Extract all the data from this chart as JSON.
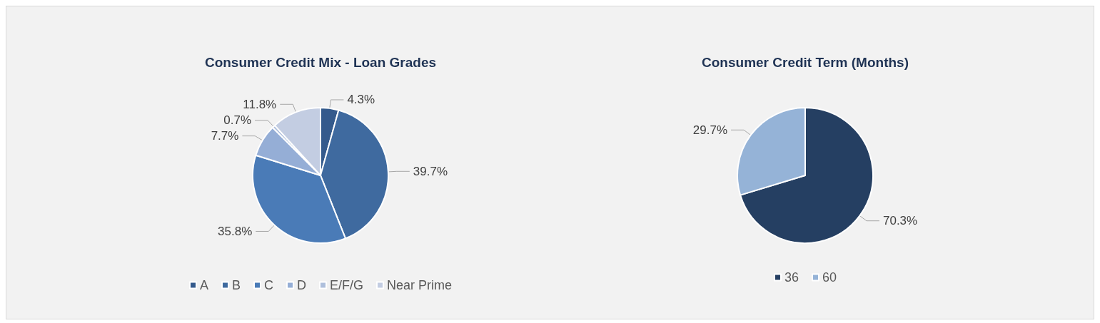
{
  "chart_data": [
    {
      "type": "pie",
      "title": "Consumer Credit Mix - Loan Grades",
      "categories": [
        "A",
        "B",
        "C",
        "D",
        "E/F/G",
        "Near Prime"
      ],
      "values": [
        4.3,
        39.7,
        35.8,
        7.7,
        0.7,
        11.8
      ],
      "value_labels": [
        "4.3%",
        "39.7%",
        "35.8%",
        "7.7%",
        "0.7%",
        "11.8%"
      ],
      "colors": [
        "#345a8c",
        "#3f6a9f",
        "#4a7bb7",
        "#95aed6",
        "#aebfdc",
        "#c3cde2"
      ],
      "legend": "bottom"
    },
    {
      "type": "pie",
      "title": "Consumer Credit Term (Months)",
      "categories": [
        "36",
        "60"
      ],
      "values": [
        70.3,
        29.7
      ],
      "value_labels": [
        "70.3%",
        "29.7%"
      ],
      "colors": [
        "#253f62",
        "#95b3d7"
      ],
      "legend": "bottom"
    }
  ]
}
